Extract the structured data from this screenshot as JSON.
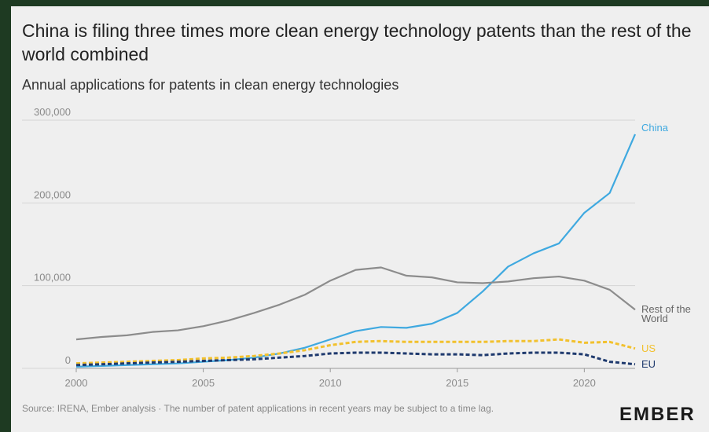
{
  "chart_data": {
    "type": "line",
    "title": "China is filing three times more clean energy technology patents than the rest of the world combined",
    "subtitle": "Annual applications for patents in clean energy technologies",
    "x": [
      2000,
      2001,
      2002,
      2003,
      2004,
      2005,
      2006,
      2007,
      2008,
      2009,
      2010,
      2011,
      2012,
      2013,
      2014,
      2015,
      2016,
      2017,
      2018,
      2019,
      2020,
      2021,
      2022
    ],
    "series": [
      {
        "name": "China",
        "color": "#3fa9e0",
        "style": "solid",
        "values": [
          2000,
          3000,
          4000,
          5000,
          6000,
          8000,
          10000,
          13000,
          18000,
          25000,
          35000,
          45000,
          50000,
          49000,
          54000,
          67000,
          93000,
          123000,
          139000,
          151000,
          188000,
          212000,
          283000
        ]
      },
      {
        "name": "Rest of the World",
        "color": "#8c8c8c",
        "style": "solid",
        "values": [
          35000,
          38000,
          40000,
          44000,
          46000,
          51000,
          58000,
          67000,
          77000,
          89000,
          106000,
          119000,
          122000,
          112000,
          110000,
          104000,
          103000,
          105000,
          109000,
          111000,
          106000,
          95000,
          71000
        ]
      },
      {
        "name": "US",
        "color": "#f2c12e",
        "style": "dashed",
        "values": [
          6000,
          7000,
          8000,
          9000,
          10000,
          12000,
          13000,
          15000,
          18000,
          22000,
          28000,
          32000,
          33000,
          32000,
          32000,
          32000,
          32000,
          33000,
          33000,
          35000,
          31000,
          32000,
          24000
        ]
      },
      {
        "name": "EU",
        "color": "#1f3a6e",
        "style": "dashed",
        "values": [
          4000,
          5000,
          6000,
          7000,
          8000,
          9000,
          10000,
          11000,
          13000,
          15000,
          18000,
          19000,
          19000,
          18000,
          17000,
          17000,
          16000,
          18000,
          19000,
          19000,
          17000,
          8000,
          5000
        ]
      }
    ],
    "xlim": [
      2000,
      2022
    ],
    "xticks": [
      2000,
      2005,
      2010,
      2015,
      2020
    ],
    "ylim": [
      0,
      300000
    ],
    "yticks": [
      0,
      {
        "value": 100000,
        "label": "100,000"
      },
      {
        "value": 200000,
        "label": "200,000"
      },
      {
        "value": 300000,
        "label": "300,000"
      }
    ],
    "grid": true,
    "source": "Source: IRENA, Ember analysis · The number of patent applications in recent years may be subject to a time lag.",
    "logo": "EMBER"
  }
}
